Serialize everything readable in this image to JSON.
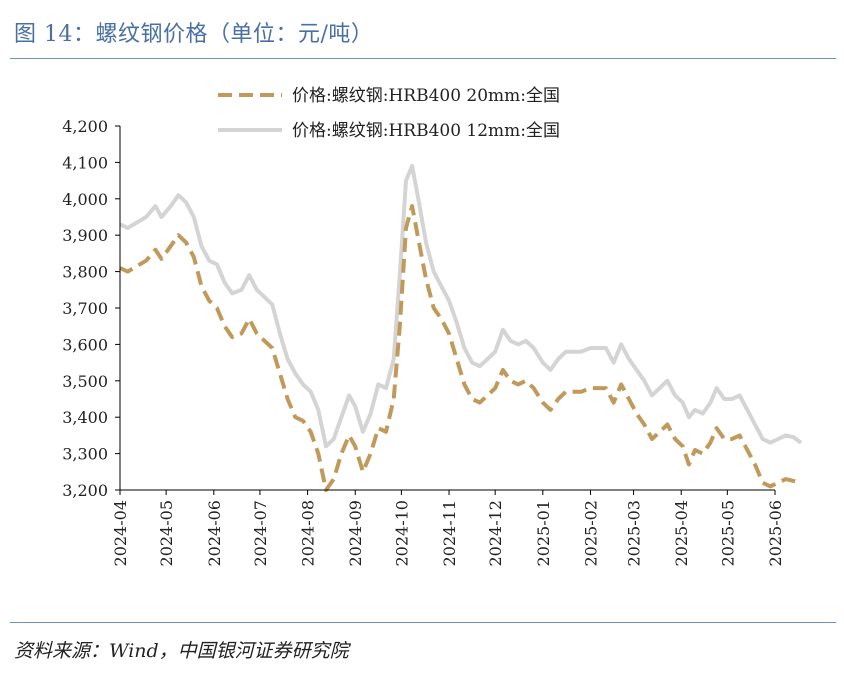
{
  "header": {
    "title": "图 14：螺纹钢价格（单位：元/吨）"
  },
  "footer": {
    "source": "资料来源：Wind，中国银河证券研究院"
  },
  "colors": {
    "title_blue": "#4a6fa5",
    "rule_blue": "#6f8fbd",
    "series_20mm": "#c19a5b",
    "series_12mm": "#d4d4d4",
    "axis": "#000000"
  },
  "chart_data": {
    "type": "line",
    "title": "",
    "xlabel": "",
    "ylabel": "",
    "ylim": [
      3200,
      4200
    ],
    "yticks": [
      3200,
      3300,
      3400,
      3500,
      3600,
      3700,
      3800,
      3900,
      4000,
      4100,
      4200
    ],
    "ytick_labels": [
      "3,200",
      "3,300",
      "3,400",
      "3,500",
      "3,600",
      "3,700",
      "3,800",
      "3,900",
      "4,000",
      "4,100",
      "4,200"
    ],
    "xlim": [
      "2024-04",
      "2025-06"
    ],
    "xtick_labels": [
      "2024-04",
      "2024-05",
      "2024-06",
      "2024-07",
      "2024-08",
      "2024-09",
      "2024-10",
      "2024-11",
      "2024-12",
      "2025-01",
      "2025-02",
      "2025-03",
      "2025-04",
      "2025-05",
      "2025-06"
    ],
    "grid": false,
    "legend": "top-center",
    "series": [
      {
        "name": "价格:螺纹钢:HRB400 20mm:全国",
        "style": "dashed",
        "points": [
          [
            "2024-04-01",
            3810
          ],
          [
            "2024-04-06",
            3800
          ],
          [
            "2024-04-12",
            3815
          ],
          [
            "2024-04-18",
            3830
          ],
          [
            "2024-04-24",
            3860
          ],
          [
            "2024-04-28",
            3835
          ],
          [
            "2024-05-04",
            3870
          ],
          [
            "2024-05-09",
            3900
          ],
          [
            "2024-05-14",
            3880
          ],
          [
            "2024-05-19",
            3840
          ],
          [
            "2024-05-24",
            3760
          ],
          [
            "2024-05-29",
            3720
          ],
          [
            "2024-06-03",
            3700
          ],
          [
            "2024-06-08",
            3650
          ],
          [
            "2024-06-13",
            3620
          ],
          [
            "2024-06-19",
            3630
          ],
          [
            "2024-06-24",
            3670
          ],
          [
            "2024-06-29",
            3630
          ],
          [
            "2024-07-04",
            3610
          ],
          [
            "2024-07-09",
            3590
          ],
          [
            "2024-07-14",
            3520
          ],
          [
            "2024-07-19",
            3450
          ],
          [
            "2024-07-24",
            3400
          ],
          [
            "2024-07-29",
            3390
          ],
          [
            "2024-08-03",
            3360
          ],
          [
            "2024-08-08",
            3300
          ],
          [
            "2024-08-13",
            3200
          ],
          [
            "2024-08-18",
            3230
          ],
          [
            "2024-08-23",
            3300
          ],
          [
            "2024-08-28",
            3350
          ],
          [
            "2024-09-01",
            3320
          ],
          [
            "2024-09-06",
            3250
          ],
          [
            "2024-09-11",
            3300
          ],
          [
            "2024-09-16",
            3370
          ],
          [
            "2024-09-21",
            3360
          ],
          [
            "2024-09-26",
            3450
          ],
          [
            "2024-09-30",
            3650
          ],
          [
            "2024-10-04",
            3920
          ],
          [
            "2024-10-08",
            3980
          ],
          [
            "2024-10-12",
            3890
          ],
          [
            "2024-10-17",
            3780
          ],
          [
            "2024-10-22",
            3700
          ],
          [
            "2024-10-27",
            3670
          ],
          [
            "2024-11-01",
            3630
          ],
          [
            "2024-11-06",
            3560
          ],
          [
            "2024-11-11",
            3490
          ],
          [
            "2024-11-16",
            3450
          ],
          [
            "2024-11-21",
            3440
          ],
          [
            "2024-11-26",
            3460
          ],
          [
            "2024-12-01",
            3480
          ],
          [
            "2024-12-06",
            3530
          ],
          [
            "2024-12-11",
            3500
          ],
          [
            "2024-12-16",
            3490
          ],
          [
            "2024-12-21",
            3500
          ],
          [
            "2024-12-26",
            3480
          ],
          [
            "2025-01-01",
            3440
          ],
          [
            "2025-01-06",
            3420
          ],
          [
            "2025-01-11",
            3450
          ],
          [
            "2025-01-16",
            3470
          ],
          [
            "2025-01-21",
            3470
          ],
          [
            "2025-01-26",
            3470
          ],
          [
            "2025-02-01",
            3480
          ],
          [
            "2025-02-06",
            3480
          ],
          [
            "2025-02-11",
            3480
          ],
          [
            "2025-02-16",
            3440
          ],
          [
            "2025-02-21",
            3490
          ],
          [
            "2025-02-26",
            3450
          ],
          [
            "2025-03-03",
            3410
          ],
          [
            "2025-03-08",
            3380
          ],
          [
            "2025-03-13",
            3340
          ],
          [
            "2025-03-18",
            3360
          ],
          [
            "2025-03-23",
            3380
          ],
          [
            "2025-03-28",
            3340
          ],
          [
            "2025-04-02",
            3320
          ],
          [
            "2025-04-06",
            3270
          ],
          [
            "2025-04-10",
            3310
          ],
          [
            "2025-04-15",
            3300
          ],
          [
            "2025-04-20",
            3330
          ],
          [
            "2025-04-24",
            3370
          ],
          [
            "2025-04-29",
            3340
          ],
          [
            "2025-05-04",
            3340
          ],
          [
            "2025-05-09",
            3350
          ],
          [
            "2025-05-14",
            3310
          ],
          [
            "2025-05-19",
            3270
          ],
          [
            "2025-05-24",
            3220
          ],
          [
            "2025-05-29",
            3210
          ],
          [
            "2025-06-03",
            3220
          ],
          [
            "2025-06-08",
            3230
          ],
          [
            "2025-06-13",
            3225
          ],
          [
            "2025-06-18",
            3220
          ]
        ]
      },
      {
        "name": "价格:螺纹钢:HRB400 12mm:全国",
        "style": "solid",
        "points": [
          [
            "2024-04-01",
            3930
          ],
          [
            "2024-04-06",
            3920
          ],
          [
            "2024-04-12",
            3935
          ],
          [
            "2024-04-18",
            3950
          ],
          [
            "2024-04-24",
            3980
          ],
          [
            "2024-04-28",
            3950
          ],
          [
            "2024-05-04",
            3980
          ],
          [
            "2024-05-09",
            4010
          ],
          [
            "2024-05-14",
            3990
          ],
          [
            "2024-05-19",
            3950
          ],
          [
            "2024-05-24",
            3870
          ],
          [
            "2024-05-29",
            3830
          ],
          [
            "2024-06-03",
            3820
          ],
          [
            "2024-06-08",
            3770
          ],
          [
            "2024-06-13",
            3740
          ],
          [
            "2024-06-19",
            3750
          ],
          [
            "2024-06-24",
            3790
          ],
          [
            "2024-06-29",
            3750
          ],
          [
            "2024-07-04",
            3730
          ],
          [
            "2024-07-09",
            3710
          ],
          [
            "2024-07-14",
            3630
          ],
          [
            "2024-07-19",
            3560
          ],
          [
            "2024-07-24",
            3520
          ],
          [
            "2024-07-29",
            3490
          ],
          [
            "2024-08-03",
            3470
          ],
          [
            "2024-08-08",
            3420
          ],
          [
            "2024-08-13",
            3320
          ],
          [
            "2024-08-18",
            3340
          ],
          [
            "2024-08-23",
            3400
          ],
          [
            "2024-08-28",
            3460
          ],
          [
            "2024-09-01",
            3430
          ],
          [
            "2024-09-06",
            3360
          ],
          [
            "2024-09-11",
            3410
          ],
          [
            "2024-09-16",
            3490
          ],
          [
            "2024-09-21",
            3480
          ],
          [
            "2024-09-26",
            3560
          ],
          [
            "2024-09-30",
            3790
          ],
          [
            "2024-10-04",
            4050
          ],
          [
            "2024-10-08",
            4090
          ],
          [
            "2024-10-12",
            4000
          ],
          [
            "2024-10-17",
            3880
          ],
          [
            "2024-10-22",
            3800
          ],
          [
            "2024-10-27",
            3760
          ],
          [
            "2024-11-01",
            3720
          ],
          [
            "2024-11-06",
            3660
          ],
          [
            "2024-11-11",
            3590
          ],
          [
            "2024-11-16",
            3550
          ],
          [
            "2024-11-21",
            3540
          ],
          [
            "2024-11-26",
            3560
          ],
          [
            "2024-12-01",
            3580
          ],
          [
            "2024-12-06",
            3640
          ],
          [
            "2024-12-11",
            3610
          ],
          [
            "2024-12-16",
            3600
          ],
          [
            "2024-12-21",
            3610
          ],
          [
            "2024-12-26",
            3590
          ],
          [
            "2025-01-01",
            3550
          ],
          [
            "2025-01-06",
            3530
          ],
          [
            "2025-01-11",
            3560
          ],
          [
            "2025-01-16",
            3580
          ],
          [
            "2025-01-21",
            3580
          ],
          [
            "2025-01-26",
            3580
          ],
          [
            "2025-02-01",
            3590
          ],
          [
            "2025-02-06",
            3590
          ],
          [
            "2025-02-11",
            3590
          ],
          [
            "2025-02-16",
            3550
          ],
          [
            "2025-02-21",
            3600
          ],
          [
            "2025-02-26",
            3560
          ],
          [
            "2025-03-03",
            3530
          ],
          [
            "2025-03-08",
            3500
          ],
          [
            "2025-03-13",
            3460
          ],
          [
            "2025-03-18",
            3480
          ],
          [
            "2025-03-23",
            3500
          ],
          [
            "2025-03-28",
            3460
          ],
          [
            "2025-04-02",
            3440
          ],
          [
            "2025-04-06",
            3400
          ],
          [
            "2025-04-10",
            3420
          ],
          [
            "2025-04-15",
            3410
          ],
          [
            "2025-04-20",
            3440
          ],
          [
            "2025-04-24",
            3480
          ],
          [
            "2025-04-29",
            3450
          ],
          [
            "2025-05-04",
            3450
          ],
          [
            "2025-05-09",
            3460
          ],
          [
            "2025-05-14",
            3420
          ],
          [
            "2025-05-19",
            3380
          ],
          [
            "2025-05-24",
            3340
          ],
          [
            "2025-05-29",
            3330
          ],
          [
            "2025-06-03",
            3340
          ],
          [
            "2025-06-08",
            3350
          ],
          [
            "2025-06-13",
            3345
          ],
          [
            "2025-06-18",
            3330
          ]
        ]
      }
    ]
  }
}
